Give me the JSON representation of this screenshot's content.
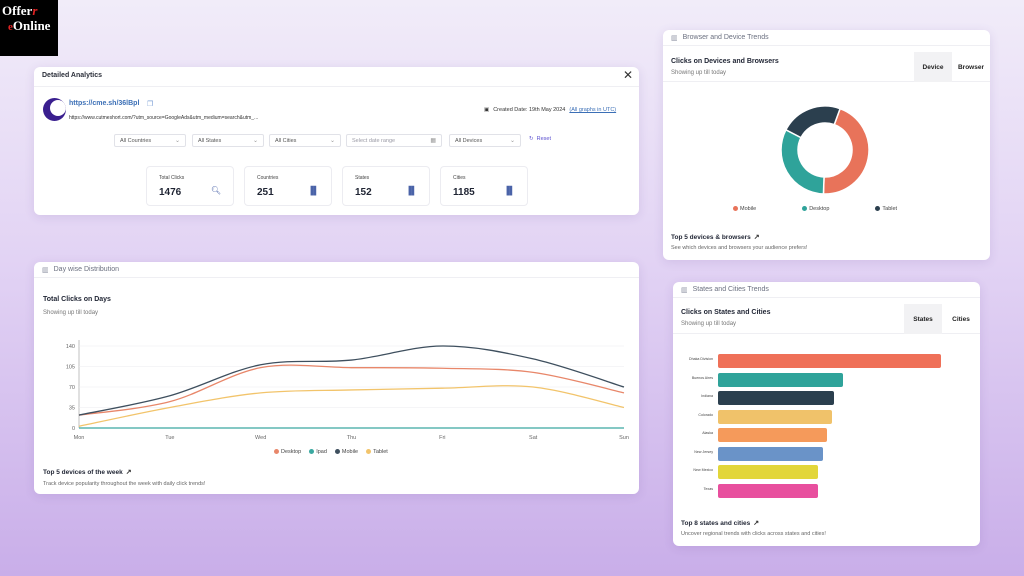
{
  "logo": {
    "line1_a": "Offer",
    "line1_b": "r",
    "line2_a": "e",
    "line2_b": "Online"
  },
  "analytics": {
    "title": "Detailed Analytics",
    "short_link": "https://cme.sh/36lBpl",
    "long_url": "https://www.cutmeshort.com/?utm_source=GoogleAds&utm_medium=search&utm_...",
    "created_date": "Created Date: 19th May 2024",
    "utc_note": "(All graphs in UTC)",
    "filters": [
      {
        "label": "All Countries"
      },
      {
        "label": "All States"
      },
      {
        "label": "All Cities"
      },
      {
        "label": "Select date range"
      },
      {
        "label": "All Devices"
      }
    ],
    "reset_label": "Reset",
    "stats": [
      {
        "label": "Total Clicks",
        "value": "1476",
        "icon": "search-icon"
      },
      {
        "label": "Countries",
        "value": "251",
        "icon": "bar-chart-icon"
      },
      {
        "label": "States",
        "value": "152",
        "icon": "bar-chart-icon"
      },
      {
        "label": "Cities",
        "value": "1185",
        "icon": "bar-chart-icon"
      }
    ]
  },
  "daywise": {
    "panel_label": "Day wise Distribution",
    "footer_title": "Top 5 devices of the week",
    "footer_sub": "Track device popularity throughout the week with daily click trends!"
  },
  "device": {
    "panel_label": "Browser and Device Trends",
    "tabs": [
      "Device",
      "Browser"
    ],
    "footer_title": "Top 5 devices & browsers",
    "footer_sub": "See which devices and browsers your audience prefers!"
  },
  "states": {
    "panel_label": "States and Cities Trends",
    "tabs": [
      "States",
      "Cities"
    ],
    "footer_title": "Top 8 states and cities",
    "footer_sub": "Uncover regional trends with clicks across states and cities!"
  },
  "chart_data": [
    {
      "type": "line",
      "title": "Total Clicks on Days",
      "subtitle": "Showing up till today",
      "x": [
        "Mon",
        "Tue",
        "Wed",
        "Thu",
        "Fri",
        "Sat",
        "Sun"
      ],
      "ylim": [
        0,
        140
      ],
      "yticks": [
        0,
        35,
        70,
        105,
        140
      ],
      "grid": true,
      "series": [
        {
          "name": "Desktop",
          "color": "#e8876a",
          "values": [
            22,
            45,
            103,
            103,
            102,
            95,
            60
          ]
        },
        {
          "name": "Ipad",
          "color": "#3aa8a0",
          "values": [
            0,
            0,
            0,
            0,
            0,
            0,
            0
          ]
        },
        {
          "name": "Mobile",
          "color": "#3e4f5e",
          "values": [
            22,
            55,
            108,
            116,
            140,
            118,
            70
          ]
        },
        {
          "name": "Tablet",
          "color": "#f2c46b",
          "values": [
            3,
            35,
            60,
            65,
            68,
            70,
            35
          ]
        }
      ],
      "legend_position": "bottom"
    },
    {
      "type": "pie",
      "title": "Clicks on Devices and Browsers",
      "subtitle": "Showing up till today",
      "donut": true,
      "series": [
        {
          "name": "Mobile",
          "color": "#e8735a",
          "value": 45
        },
        {
          "name": "Desktop",
          "color": "#2fa39a",
          "value": 32
        },
        {
          "name": "Tablet",
          "color": "#2b3f4e",
          "value": 23
        }
      ],
      "legend_position": "bottom"
    },
    {
      "type": "bar",
      "orientation": "horizontal",
      "title": "Clicks on States and Cities",
      "subtitle": "Showing up till today",
      "categories": [
        "Dhaka Division",
        "Buenos Aires",
        "Indiana",
        "Colorado",
        "Alaska",
        "New Jersey",
        "New Mexico",
        "Texas"
      ],
      "values": [
        100,
        56,
        52,
        51,
        49,
        47,
        45,
        45
      ],
      "colors": [
        "#ef7058",
        "#2fa39a",
        "#2b3f4e",
        "#f0c26a",
        "#f59a5b",
        "#6a93c8",
        "#e2d63a",
        "#e84f9e"
      ],
      "grid": false
    }
  ]
}
